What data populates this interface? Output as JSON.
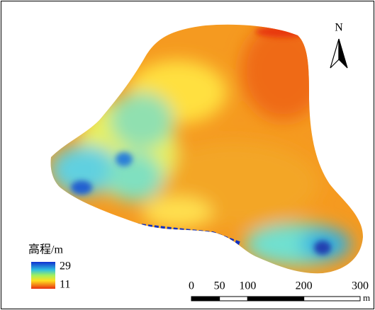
{
  "north_label": "N",
  "legend": {
    "title": "高程/m",
    "max": 29,
    "min": 11
  },
  "scale_bar": {
    "ticks": [
      0,
      50,
      100,
      200,
      300
    ],
    "unit": "m"
  }
}
